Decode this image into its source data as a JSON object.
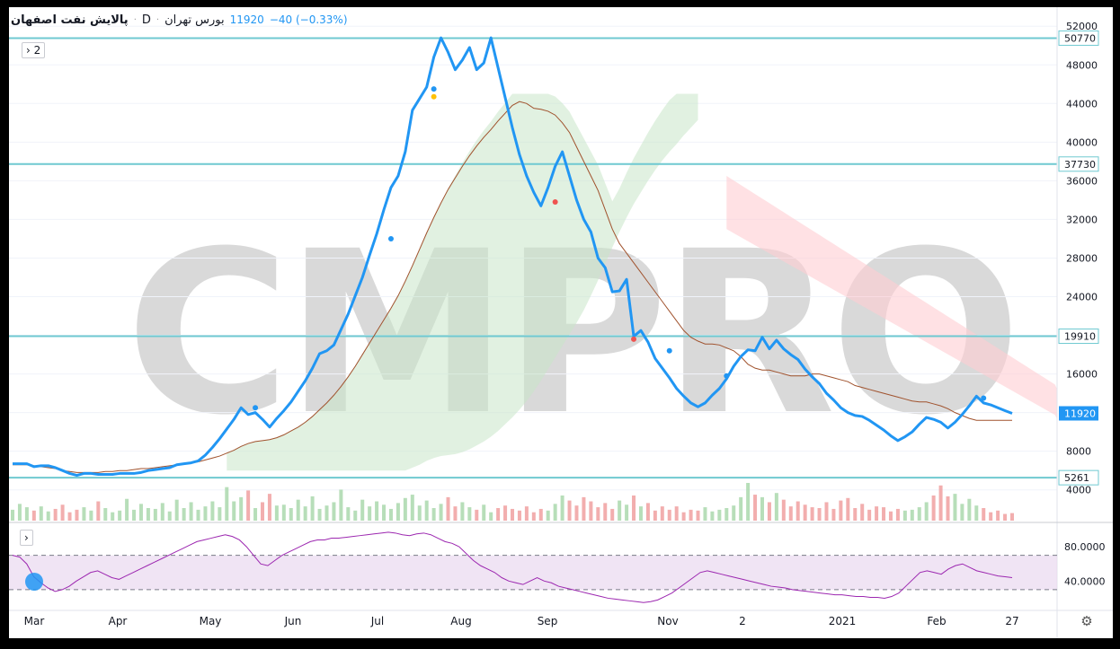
{
  "header": {
    "symbol": "پالایش نفت اصفهان",
    "dot1": "·",
    "timeframe": "D",
    "dot2": "·",
    "exchange": "بورس تهران",
    "last_price": "11920",
    "change": "−40 (−0.33%)"
  },
  "buttons": {
    "collapse_label": "2",
    "collapse_icon": "›",
    "rsi_collapse_icon": "›",
    "settings_icon": "⚙"
  },
  "watermark": "CMPRO",
  "colors": {
    "price_line": "#2196f3",
    "level_line": "#6fc9d1",
    "ma_line": "#a0522d",
    "cloud_green": "#c8e6c9",
    "cloud_red": "#ffcdd2",
    "rsi_line": "#9c27b0",
    "rsi_band": "#e9d8ef",
    "vol_up": "#a5d6a7",
    "vol_down": "#ef9a9a",
    "price_tag": "#2196f3"
  },
  "chart_data": [
    {
      "type": "line",
      "title": "",
      "y_axis": {
        "ticks": [
          4000,
          8000,
          12000,
          16000,
          20000,
          24000,
          28000,
          32000,
          36000,
          40000,
          44000,
          48000,
          52000
        ],
        "ylim": [
          1000,
          53600
        ]
      },
      "x_axis": {
        "labels": [
          "Mar",
          "Apr",
          "May",
          "Jun",
          "Jul",
          "Aug",
          "Sep",
          "Nov",
          "2",
          "2021",
          "Feb",
          "27"
        ]
      },
      "horizontal_levels": [
        50770,
        37730,
        19910,
        5261
      ],
      "last_price_tag": 11920,
      "series": [
        {
          "values": [
            6700,
            6700,
            6700,
            6400,
            6500,
            6500,
            6300,
            6000,
            5700,
            5500,
            5700,
            5700,
            5600,
            5600,
            5600,
            5700,
            5700,
            5700,
            5800,
            6000,
            6100,
            6200,
            6300,
            6600,
            6700,
            6800,
            7000,
            7600,
            8400,
            9300,
            10300,
            11300,
            12500,
            11800,
            12000,
            11300,
            10500,
            11400,
            12200,
            13100,
            14200,
            15300,
            16600,
            18100,
            18400,
            19000,
            20600,
            22200,
            24100,
            26000,
            28300,
            30500,
            33000,
            35300,
            36500,
            39000,
            43300,
            44500,
            45700,
            48800,
            50800,
            49300,
            47500,
            48500,
            49800,
            47500,
            48200,
            50800,
            47700,
            44600,
            41500,
            38700,
            36500,
            34800,
            33400,
            35300,
            37500,
            39000,
            36500,
            34000,
            32000,
            30700,
            28000,
            27000,
            24500,
            24600,
            25800,
            19900,
            20500,
            19300,
            17600,
            16600,
            15600,
            14500,
            13700,
            13000,
            12600,
            13000,
            13800,
            14500,
            15500,
            16800,
            17800,
            18500,
            18400,
            19800,
            18600,
            19500,
            18600,
            18000,
            17500,
            16500,
            15700,
            15000,
            14000,
            13300,
            12500,
            12000,
            11700,
            11600,
            11200,
            10700,
            10200,
            9600,
            9100,
            9500,
            10000,
            10800,
            11500,
            11300,
            11000,
            10400,
            11000,
            11800,
            12700,
            13700,
            13000,
            12800,
            12500,
            12200,
            11920
          ]
        },
        {
          "values": [
            6600,
            6600,
            6600,
            6500,
            6400,
            6300,
            6200,
            6000,
            5900,
            5800,
            5800,
            5800,
            5800,
            5900,
            5900,
            6000,
            6000,
            6100,
            6200,
            6200,
            6300,
            6400,
            6500,
            6600,
            6700,
            6800,
            6900,
            7100,
            7300,
            7500,
            7800,
            8100,
            8500,
            8800,
            9000,
            9100,
            9200,
            9400,
            9700,
            10100,
            10500,
            11000,
            11600,
            12300,
            13000,
            13800,
            14700,
            15700,
            16800,
            18000,
            19200,
            20400,
            21600,
            22800,
            24100,
            25600,
            27200,
            28900,
            30600,
            32200,
            33700,
            35100,
            36300,
            37500,
            38600,
            39600,
            40500,
            41300,
            42200,
            43000,
            43800,
            44200,
            44000,
            43500,
            43400,
            43200,
            42800,
            42000,
            41000,
            39500,
            38000,
            36500,
            35000,
            33000,
            31000,
            29500,
            28500,
            27500,
            26500,
            25500,
            24500,
            23500,
            22500,
            21500,
            20500,
            19800,
            19400,
            19100,
            19100,
            19000,
            18700,
            18400,
            17800,
            17000,
            16600,
            16400,
            16400,
            16200,
            16000,
            15800,
            15800,
            15800,
            16000,
            16000,
            15800,
            15600,
            15400,
            15200,
            14800,
            14600,
            14400,
            14200,
            14000,
            13800,
            13600,
            13400,
            13200,
            13100,
            13100,
            12900,
            12700,
            12400,
            12000,
            11700,
            11400,
            11200,
            11200,
            11200,
            11200,
            11200,
            11200
          ]
        }
      ]
    },
    {
      "type": "bar",
      "title": "",
      "values": [
        1300,
        2000,
        1600,
        1200,
        1700,
        1100,
        1400,
        1900,
        1000,
        1300,
        1600,
        1200,
        2300,
        1500,
        1000,
        1200,
        2600,
        1300,
        2000,
        1500,
        1400,
        2100,
        1100,
        2500,
        1500,
        2200,
        1300,
        1700,
        2300,
        1600,
        4000,
        2300,
        2800,
        3600,
        1500,
        2200,
        3200,
        1800,
        1900,
        1500,
        2500,
        1700,
        2900,
        1400,
        1800,
        2200,
        3700,
        1600,
        1200,
        2500,
        1700,
        2300,
        1900,
        1400,
        2100,
        2700,
        3100,
        1800,
        2400,
        1500,
        2000,
        2800,
        1700,
        2200,
        1600,
        1300,
        1900,
        1000,
        1500,
        1800,
        1400,
        1200,
        1700,
        1000,
        1400,
        1200,
        2000,
        3000,
        2400,
        1800,
        2800,
        2300,
        1600,
        2100,
        1400,
        2400,
        1900,
        3000,
        1700,
        2100,
        1200,
        1700,
        1300,
        1700,
        1000,
        1300,
        1200,
        1600,
        1100,
        1300,
        1500,
        1800,
        2800,
        4500,
        3100,
        2800,
        2200,
        3300,
        2500,
        1700,
        2300,
        1900,
        1600,
        1500,
        2200,
        1400,
        2400,
        2700,
        1500,
        2000,
        1300,
        1700,
        1600,
        1100,
        1400,
        1200,
        1300,
        1600,
        2200,
        3000,
        4200,
        2900,
        3200,
        2000,
        2600,
        1800,
        1500,
        1000,
        1200,
        800,
        900
      ]
    },
    {
      "type": "line",
      "title": "",
      "y_axis": {
        "ticks": [
          40,
          80
        ],
        "ylim": [
          10,
          100
        ]
      },
      "band": [
        30,
        70
      ],
      "values": [
        70,
        68,
        60,
        45,
        38,
        32,
        28,
        30,
        34,
        40,
        45,
        50,
        52,
        48,
        44,
        42,
        46,
        50,
        54,
        58,
        62,
        66,
        70,
        74,
        78,
        82,
        86,
        88,
        90,
        92,
        94,
        92,
        88,
        80,
        70,
        60,
        58,
        64,
        70,
        74,
        78,
        82,
        86,
        88,
        88,
        90,
        90,
        91,
        92,
        93,
        94,
        95,
        96,
        97,
        96,
        94,
        93,
        95,
        96,
        94,
        90,
        86,
        84,
        80,
        72,
        64,
        58,
        54,
        50,
        44,
        40,
        38,
        36,
        40,
        44,
        40,
        38,
        34,
        32,
        30,
        28,
        26,
        24,
        22,
        20,
        19,
        18,
        17,
        16,
        15,
        16,
        18,
        22,
        26,
        32,
        38,
        44,
        50,
        52,
        50,
        48,
        46,
        44,
        42,
        40,
        38,
        36,
        34,
        33,
        32,
        30,
        29,
        28,
        27,
        26,
        25,
        24,
        24,
        23,
        22,
        22,
        21,
        21,
        20,
        22,
        26,
        34,
        42,
        50,
        52,
        50,
        48,
        54,
        58,
        60,
        56,
        52,
        50,
        48,
        46,
        45,
        44
      ]
    }
  ]
}
